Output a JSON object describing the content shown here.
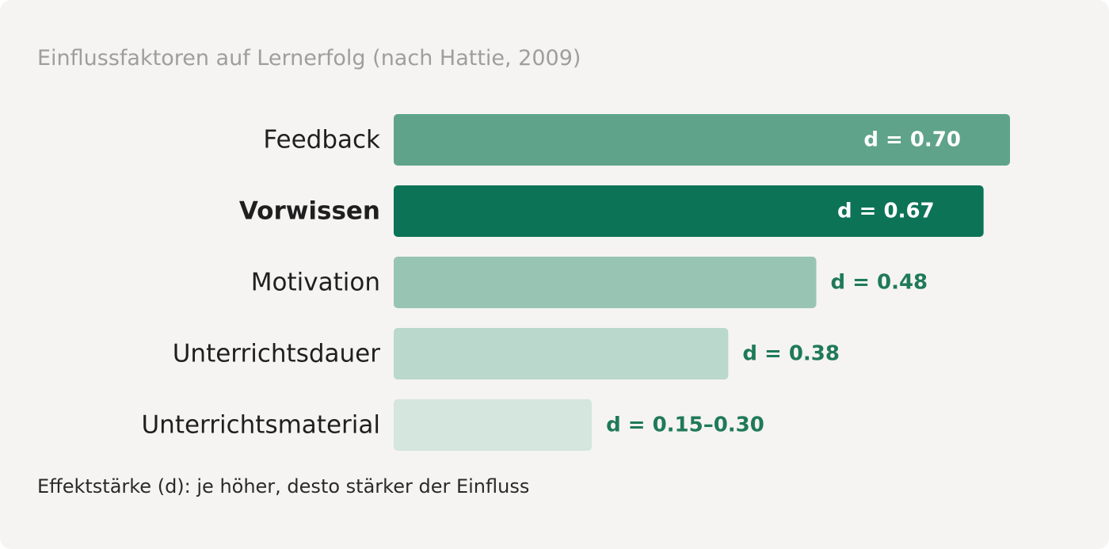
{
  "title": "Einflussfaktoren auf Lernerfolg (nach Hattie, 2009)",
  "footnote": "Effektstärke (d): je höher, desto stärker der Einfluss",
  "colors": {
    "value_label_outside": "#1f7a57",
    "value_label_inside": "#ffffff",
    "category_label": "#1f1f1f"
  },
  "chart_data": {
    "type": "bar",
    "orientation": "horizontal",
    "categories": [
      "Feedback",
      "Vorwissen",
      "Motivation",
      "Unterrichtsdauer",
      "Unterrichtsmaterial"
    ],
    "values": [
      0.7,
      0.67,
      0.48,
      0.38,
      0.225
    ],
    "value_labels": [
      "d = 0.70",
      "d = 0.67",
      "d = 0.48",
      "d = 0.38",
      "d = 0.15–0.30"
    ],
    "highlighted": "Vorwissen",
    "label_inside_bar": [
      true,
      true,
      false,
      false,
      false
    ],
    "bar_colors": [
      "#5fa38b",
      "#0d7356",
      "#98c4b3",
      "#bad8cb",
      "#d4e6de"
    ],
    "xlim": [
      0,
      0.7
    ],
    "grid": false,
    "legend": "none"
  }
}
